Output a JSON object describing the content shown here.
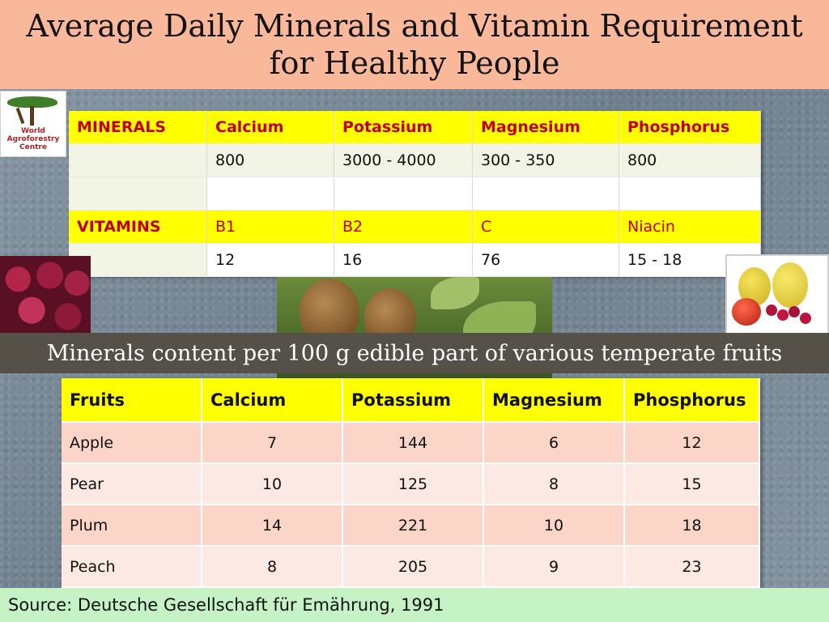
{
  "title": {
    "line1": "Average Daily Minerals and Vitamin Requirement",
    "line2": "for Healthy People"
  },
  "logo": {
    "text_line1": "World",
    "text_line2": "Agroforestry",
    "text_line3": "Centre"
  },
  "requirements": {
    "minerals_label": "MINERALS",
    "minerals": [
      "Calcium",
      "Potassium",
      "Magnesium",
      "Phosphorus"
    ],
    "mineral_values": [
      "800",
      "3000 - 4000",
      "300 - 350",
      "800"
    ],
    "vitamins_label": "VITAMINS",
    "vitamins": [
      "B1",
      "B2",
      "C",
      "Niacin"
    ],
    "vitamin_values": [
      "12",
      "16",
      "76",
      "15 - 18"
    ]
  },
  "subtitle": "Minerals content per 100 g edible part of various temperate fruits",
  "fruit_table": {
    "headers": [
      "Fruits",
      "Calcium",
      "Potassium",
      "Magnesium",
      "Phosphorus"
    ],
    "rows": [
      [
        "Apple",
        "7",
        "144",
        "6",
        "12"
      ],
      [
        "Pear",
        "10",
        "125",
        "8",
        "15"
      ],
      [
        "Plum",
        "14",
        "221",
        "10",
        "18"
      ],
      [
        "Peach",
        "8",
        "205",
        "9",
        "23"
      ]
    ]
  },
  "source": "Source: Deutsche Gesellschaft für Emährung, 1991",
  "colors": {
    "title_bg": "#f9b89a",
    "header_yellow": "#ffff00",
    "header_text_red": "#c00000",
    "subtitle_bg": "#555149",
    "source_bg": "#c6f3c6"
  }
}
